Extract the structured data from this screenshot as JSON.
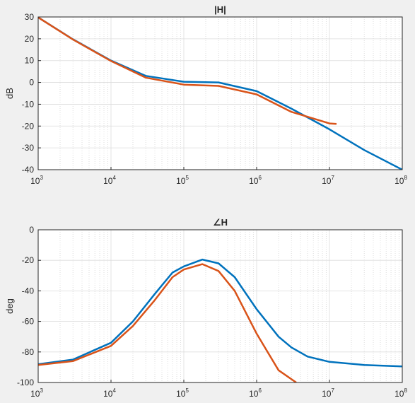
{
  "chart_data": [
    {
      "type": "line",
      "title": "|H|",
      "xlabel": "",
      "ylabel": "dB",
      "xscale": "log",
      "xlim": [
        1000,
        100000000
      ],
      "ylim": [
        -40,
        30
      ],
      "yticks": [
        30,
        20,
        10,
        0,
        -10,
        -20,
        -30,
        -40
      ],
      "xticks": [
        {
          "base": "10",
          "exp": "3",
          "value": 1000
        },
        {
          "base": "10",
          "exp": "4",
          "value": 10000
        },
        {
          "base": "10",
          "exp": "5",
          "value": 100000
        },
        {
          "base": "10",
          "exp": "6",
          "value": 1000000
        },
        {
          "base": "10",
          "exp": "7",
          "value": 10000000
        },
        {
          "base": "10",
          "exp": "8",
          "value": 100000000
        }
      ],
      "grid": true,
      "series": [
        {
          "color": "#0072bd",
          "x": [
            1000,
            3000,
            10000,
            30000,
            100000,
            300000,
            1000000,
            3000000,
            10000000,
            30000000,
            100000000
          ],
          "y": [
            29.8,
            19.8,
            10.0,
            3.0,
            0.3,
            0.0,
            -4.0,
            -12.0,
            -21.5,
            -31.0,
            -40.0
          ]
        },
        {
          "color": "#d95319",
          "x": [
            1000,
            3000,
            10000,
            30000,
            100000,
            300000,
            1000000,
            3000000,
            10000000,
            12500000
          ],
          "y": [
            29.8,
            19.7,
            9.8,
            2.2,
            -1.0,
            -1.6,
            -5.5,
            -13.5,
            -18.8,
            -19.0
          ]
        }
      ]
    },
    {
      "type": "line",
      "title": "H",
      "title_prefix": "∠",
      "xlabel": "",
      "ylabel": "deg",
      "xscale": "log",
      "xlim": [
        1000,
        100000000
      ],
      "ylim": [
        -100,
        0
      ],
      "yticks": [
        0,
        -20,
        -40,
        -60,
        -80,
        -100
      ],
      "xticks": [
        {
          "base": "10",
          "exp": "3",
          "value": 1000
        },
        {
          "base": "10",
          "exp": "4",
          "value": 10000
        },
        {
          "base": "10",
          "exp": "5",
          "value": 100000
        },
        {
          "base": "10",
          "exp": "6",
          "value": 1000000
        },
        {
          "base": "10",
          "exp": "7",
          "value": 10000000
        },
        {
          "base": "10",
          "exp": "8",
          "value": 100000000
        }
      ],
      "grid": true,
      "series": [
        {
          "color": "#0072bd",
          "x": [
            1000,
            3000,
            10000,
            20000,
            40000,
            70000,
            100000,
            180000,
            300000,
            500000,
            1000000,
            2000000,
            3000000,
            5000000,
            10000000,
            30000000,
            100000000
          ],
          "y": [
            -88,
            -85,
            -74,
            -60,
            -42,
            -28,
            -24,
            -19.5,
            -22,
            -31,
            -52,
            -70,
            -77,
            -83,
            -86.5,
            -88.5,
            -89.5
          ]
        },
        {
          "color": "#d95319",
          "x": [
            1000,
            3000,
            10000,
            20000,
            40000,
            70000,
            100000,
            180000,
            300000,
            500000,
            1000000,
            2000000,
            3500000
          ],
          "y": [
            -88.5,
            -86,
            -76,
            -63,
            -46,
            -31,
            -26,
            -22.5,
            -27,
            -40,
            -68,
            -92,
            -100
          ]
        }
      ]
    }
  ]
}
